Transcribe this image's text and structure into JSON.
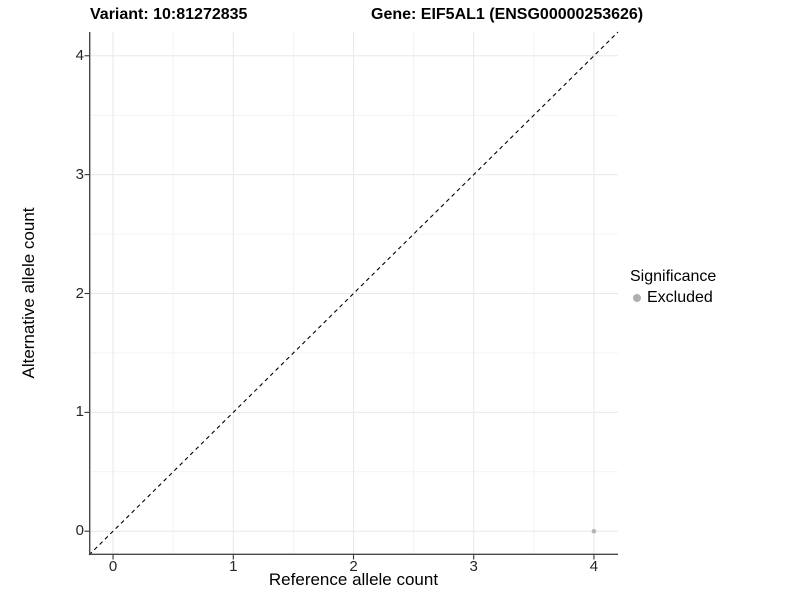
{
  "figure": {
    "title_left": "Variant: 10:81272835",
    "title_right": "Gene: EIF5AL1 (ENSG00000253626)"
  },
  "chart_data": {
    "type": "scatter",
    "title": "Variant: 10:81272835  Gene: EIF5AL1 (ENSG00000253626)",
    "xlabel": "Reference allele count",
    "ylabel": "Alternative allele count",
    "xlim": [
      -0.2,
      4.2
    ],
    "ylim": [
      -0.2,
      4.2
    ],
    "x_ticks": [
      0,
      1,
      2,
      3,
      4
    ],
    "y_ticks": [
      0,
      1,
      2,
      3,
      4
    ],
    "minor_ticks": [
      0.5,
      1.5,
      2.5,
      3.5
    ],
    "grid": true,
    "identity_line": {
      "style": "dashed",
      "color": "#000000",
      "slope": 1,
      "intercept": 0
    },
    "series": [
      {
        "name": "Excluded",
        "color": "#b5b5b5",
        "points": [
          {
            "x": 4,
            "y": 0
          }
        ]
      }
    ],
    "legend": {
      "title": "Significance",
      "position": "right",
      "entries": [
        {
          "label": "Excluded",
          "color": "#b0b0b0"
        }
      ]
    },
    "colors": {
      "grid_major": "#e8e8e8",
      "grid_minor": "#f3f3f3",
      "axis_line": "#474747",
      "tick_mark": "#333333",
      "tick_text": "#262626"
    }
  }
}
